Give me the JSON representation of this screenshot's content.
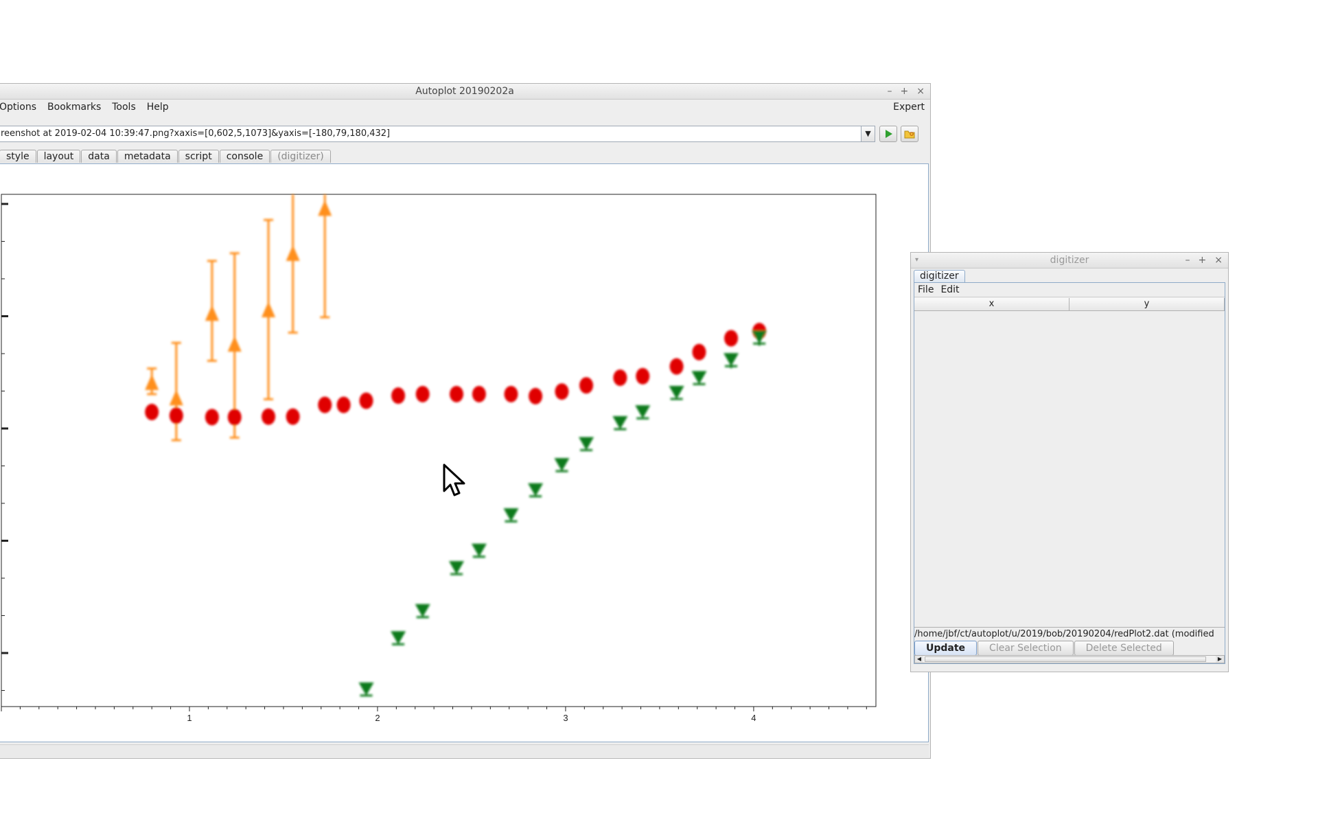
{
  "main_window": {
    "title": "Autoplot 20190202a",
    "controls": [
      "–",
      "+",
      "×"
    ],
    "menu": [
      "Options",
      "Bookmarks",
      "Tools",
      "Help"
    ],
    "expert_label": "Expert",
    "url_value": "reenshot at 2019-02-04 10:39:47.png?xaxis=[0,602,5,1073]&yaxis=[-180,79,180,432]",
    "go_icon": "play-icon",
    "browse_icon": "folder-icon",
    "tabs": [
      "style",
      "layout",
      "data",
      "metadata",
      "script",
      "console",
      "(digitizer)"
    ]
  },
  "digitizer_window": {
    "title": "digitizer",
    "controls": [
      "–",
      "+",
      "×"
    ],
    "tab": "digitizer",
    "menu": [
      "File",
      "Edit"
    ],
    "columns": [
      "x",
      "y"
    ],
    "file_path": "/home/jbf/ct/autoplot/u/2019/bob/20190204/redPlot2.dat (modified",
    "buttons": {
      "update": "Update",
      "clear": "Clear Selection",
      "delete": "Delete Selected"
    }
  },
  "colors": {
    "red": "#e00000",
    "green": "#0b7a1a",
    "orange": "#ff8f1f"
  },
  "chart_data": {
    "type": "scatter",
    "xlim": [
      0,
      4.65
    ],
    "ylim": [
      0,
      1
    ],
    "x_ticks": [
      "1",
      "2",
      "3",
      "4"
    ],
    "series": [
      {
        "marker": "circle",
        "color": "#e00000",
        "x": [
          0.8,
          0.93,
          1.12,
          1.24,
          1.42,
          1.55,
          1.72,
          1.82,
          1.94,
          2.11,
          2.24,
          2.42,
          2.54,
          2.71,
          2.84,
          2.98,
          3.11,
          3.29,
          3.41,
          3.59,
          3.71,
          3.88,
          4.03
        ],
        "y": [
          0.575,
          0.568,
          0.565,
          0.565,
          0.566,
          0.566,
          0.589,
          0.589,
          0.597,
          0.607,
          0.61,
          0.61,
          0.61,
          0.61,
          0.606,
          0.615,
          0.627,
          0.642,
          0.645,
          0.664,
          0.692,
          0.719,
          0.733
        ]
      },
      {
        "marker": "triangle-down",
        "color": "#0b7a1a",
        "x": [
          1.94,
          2.11,
          2.24,
          2.42,
          2.54,
          2.71,
          2.84,
          2.98,
          3.11,
          3.29,
          3.41,
          3.59,
          3.71,
          3.88,
          4.03
        ],
        "y": [
          0.035,
          0.135,
          0.188,
          0.272,
          0.306,
          0.375,
          0.424,
          0.473,
          0.514,
          0.555,
          0.576,
          0.614,
          0.643,
          0.678,
          0.722
        ],
        "y_err": [
          0,
          0,
          0,
          0,
          0,
          0,
          0,
          0,
          0,
          0,
          0,
          0,
          0,
          0.012,
          0.012
        ]
      },
      {
        "marker": "triangle-up",
        "color": "#ff8f1f",
        "x": [
          0.8,
          0.93,
          1.12,
          1.24,
          1.42,
          1.55,
          1.72
        ],
        "y": [
          0.63,
          0.6,
          0.765,
          0.705,
          0.772,
          0.882,
          0.97
        ],
        "y_lo": [
          0.61,
          0.52,
          0.675,
          0.525,
          0.6,
          0.73,
          0.76
        ],
        "y_hi": [
          0.66,
          0.71,
          0.87,
          0.885,
          0.95,
          1.0,
          1.0
        ]
      }
    ]
  }
}
